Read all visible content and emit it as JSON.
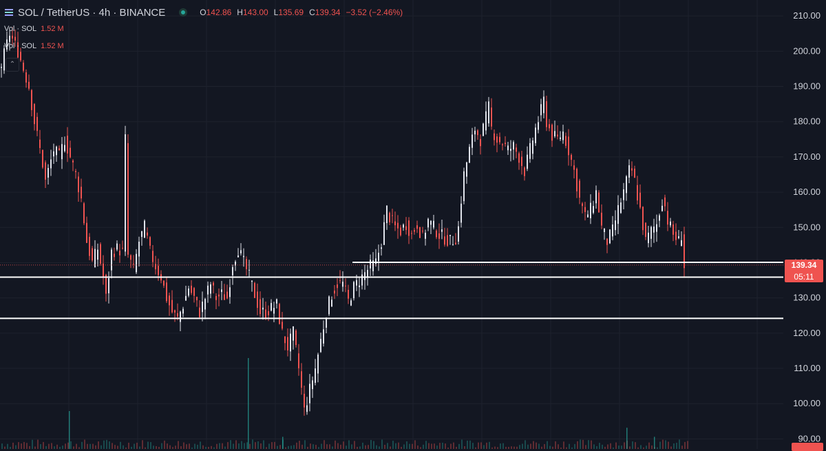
{
  "header": {
    "symbol_title": "SOL / TetherUS · 4h · BINANCE",
    "ohlc": {
      "o_label": "O",
      "o_value": "142.86",
      "h_label": "H",
      "h_value": "143.00",
      "l_label": "L",
      "l_value": "135.69",
      "c_label": "C",
      "c_value": "139.34",
      "change": "−3.52 (−2.46%)"
    }
  },
  "volume_legend": [
    {
      "label": "Vol · SOL",
      "value": "1.52 M"
    },
    {
      "label": "Vol · SOL",
      "value": "1.52 M"
    }
  ],
  "price_tag": {
    "price": "139.34",
    "countdown": "05:11"
  },
  "colors": {
    "background": "#131722",
    "bear": "#ef5350",
    "bull": "#e0e3eb",
    "level_line": "#ffffff",
    "volume": "#26a69a",
    "status_dot": "#26a69a"
  },
  "chart_data": {
    "type": "candlestick",
    "symbol": "SOL / TetherUS",
    "interval": "4h",
    "exchange": "BINANCE",
    "y_axis_ticks": [
      90,
      100,
      110,
      120,
      130,
      140,
      150,
      160,
      170,
      180,
      190,
      200,
      210
    ],
    "ylim": [
      89.5,
      211
    ],
    "last_price": 139.34,
    "horizontal_levels": [
      {
        "price": 140.1,
        "start_fraction": 0.45
      },
      {
        "price": 135.9,
        "start_fraction": 0.0
      },
      {
        "price": 124.2,
        "start_fraction": 0.0
      }
    ],
    "price_path": [
      [
        0,
        196
      ],
      [
        3,
        205
      ],
      [
        6,
        200
      ],
      [
        10,
        190
      ],
      [
        12,
        180
      ],
      [
        15,
        168
      ],
      [
        16,
        163
      ],
      [
        19,
        172
      ],
      [
        21,
        170
      ],
      [
        23,
        175
      ],
      [
        25,
        170
      ],
      [
        27,
        165
      ],
      [
        29,
        158
      ],
      [
        31,
        146
      ],
      [
        33,
        140
      ],
      [
        35,
        144
      ],
      [
        37,
        136
      ],
      [
        38,
        130
      ],
      [
        40,
        143
      ],
      [
        42,
        144
      ],
      [
        44,
        143
      ],
      [
        45,
        175
      ],
      [
        46,
        142
      ],
      [
        48,
        138
      ],
      [
        50,
        146
      ],
      [
        52,
        150
      ],
      [
        54,
        143
      ],
      [
        56,
        139
      ],
      [
        58,
        136
      ],
      [
        60,
        130
      ],
      [
        62,
        126
      ],
      [
        64,
        124
      ],
      [
        66,
        128
      ],
      [
        68,
        133
      ],
      [
        70,
        130
      ],
      [
        72,
        126
      ],
      [
        74,
        130
      ],
      [
        76,
        134
      ],
      [
        78,
        130
      ],
      [
        80,
        131
      ],
      [
        82,
        130
      ],
      [
        84,
        140
      ],
      [
        86,
        144
      ],
      [
        88,
        140
      ],
      [
        90,
        136
      ],
      [
        92,
        131
      ],
      [
        94,
        126
      ],
      [
        96,
        126
      ],
      [
        98,
        127
      ],
      [
        100,
        128
      ],
      [
        102,
        120
      ],
      [
        104,
        116
      ],
      [
        106,
        120
      ],
      [
        108,
        110
      ],
      [
        110,
        98
      ],
      [
        112,
        104
      ],
      [
        114,
        110
      ],
      [
        116,
        118
      ],
      [
        118,
        126
      ],
      [
        120,
        131
      ],
      [
        122,
        134
      ],
      [
        124,
        134
      ],
      [
        126,
        129
      ],
      [
        128,
        133
      ],
      [
        130,
        135
      ],
      [
        132,
        137
      ],
      [
        134,
        139
      ],
      [
        136,
        140
      ],
      [
        138,
        146
      ],
      [
        140,
        155
      ],
      [
        141,
        153
      ],
      [
        143,
        150
      ],
      [
        145,
        149
      ],
      [
        147,
        151
      ],
      [
        149,
        148
      ],
      [
        151,
        151
      ],
      [
        153,
        147
      ],
      [
        155,
        152
      ],
      [
        157,
        150
      ],
      [
        159,
        148
      ],
      [
        161,
        147
      ],
      [
        163,
        146
      ],
      [
        165,
        147
      ],
      [
        166,
        150
      ],
      [
        167,
        158
      ],
      [
        168,
        165
      ],
      [
        170,
        172
      ],
      [
        172,
        178
      ],
      [
        174,
        175
      ],
      [
        176,
        181
      ],
      [
        177,
        184
      ],
      [
        178,
        178
      ],
      [
        180,
        175
      ],
      [
        182,
        174
      ],
      [
        184,
        172
      ],
      [
        186,
        173
      ],
      [
        188,
        170
      ],
      [
        190,
        166
      ],
      [
        192,
        172
      ],
      [
        194,
        178
      ],
      [
        196,
        183
      ],
      [
        197,
        186
      ],
      [
        198,
        180
      ],
      [
        200,
        176
      ],
      [
        202,
        175
      ],
      [
        204,
        177
      ],
      [
        206,
        172
      ],
      [
        208,
        166
      ],
      [
        210,
        158
      ],
      [
        212,
        153
      ],
      [
        214,
        155
      ],
      [
        216,
        160
      ],
      [
        218,
        150
      ],
      [
        220,
        146
      ],
      [
        222,
        149
      ],
      [
        224,
        155
      ],
      [
        226,
        160
      ],
      [
        228,
        166
      ],
      [
        229,
        166
      ],
      [
        230,
        163
      ],
      [
        232,
        155
      ],
      [
        234,
        146
      ],
      [
        236,
        149
      ],
      [
        238,
        151
      ],
      [
        240,
        158
      ],
      [
        241,
        156
      ],
      [
        242,
        152
      ],
      [
        244,
        148
      ],
      [
        246,
        146
      ],
      [
        247,
        148
      ],
      [
        248,
        139
      ]
    ],
    "volume_spikes": [
      {
        "at": 0.36,
        "height": 0.6
      },
      {
        "at": 0.1,
        "height": 0.25
      },
      {
        "at": 0.41,
        "height": 0.08
      },
      {
        "at": 0.91,
        "height": 0.14
      },
      {
        "at": 0.95,
        "height": 0.08
      }
    ]
  }
}
